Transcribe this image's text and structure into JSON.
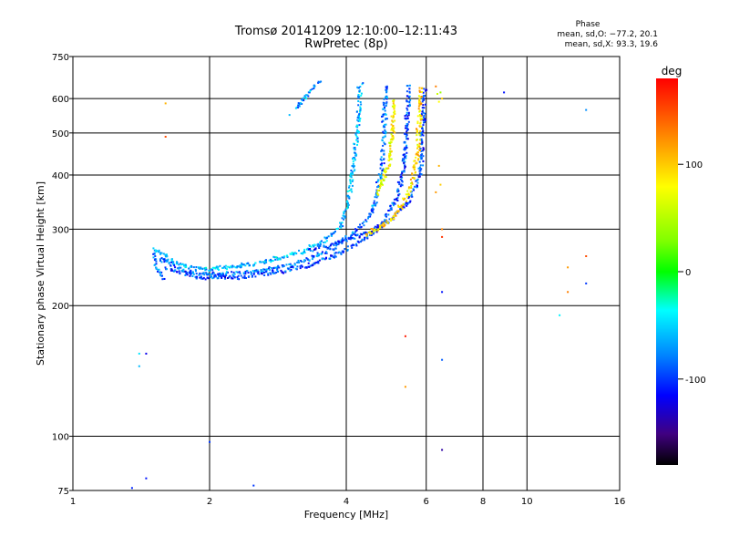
{
  "header": {
    "title_line1": "Tromsø 20141209 12:10:00–12:11:43",
    "title_line2": "RwPretec (8p)",
    "phase_heading": "Phase",
    "phase_o": "mean, sd,O: −77.2, 20.1",
    "phase_x": "mean, sd,X:  93.3, 19.6"
  },
  "chart_data": {
    "type": "scatter",
    "title": "Tromsø 20141209 12:10:00–12:11:43",
    "subtitle": "RwPretec (8p)",
    "xlabel": "Frequency [MHz]",
    "ylabel": "Stationary phase Virtual Height [km]",
    "x_scale": "log",
    "y_scale": "log",
    "xlim": [
      1,
      16
    ],
    "ylim": [
      75,
      750
    ],
    "x_ticks": [
      1,
      2,
      4,
      6,
      8,
      10,
      16
    ],
    "y_ticks": [
      75,
      100,
      200,
      300,
      400,
      500,
      600,
      750
    ],
    "grid": true,
    "colorbar": {
      "label": "deg",
      "range": [
        -180,
        180
      ],
      "ticks": [
        100,
        0,
        -100
      ],
      "colors": [
        "#ff0000",
        "#ff8000",
        "#ffff00",
        "#00ff00",
        "#00ffff",
        "#0080ff",
        "#0000ff",
        "#400080",
        "#000000"
      ]
    },
    "phase_stats": {
      "O": {
        "mean": -77.2,
        "sd": 20.1
      },
      "X": {
        "mean": 93.3,
        "sd": 19.6
      }
    },
    "traces": [
      {
        "mode": "O",
        "phase": -60,
        "spread": 4,
        "points": [
          [
            1.5,
            270
          ],
          [
            1.65,
            255
          ],
          [
            1.8,
            245
          ],
          [
            2.0,
            243
          ],
          [
            2.4,
            248
          ],
          [
            2.8,
            256
          ],
          [
            3.2,
            267
          ],
          [
            3.6,
            283
          ],
          [
            3.9,
            305
          ],
          [
            4.05,
            350
          ],
          [
            4.15,
            420
          ],
          [
            4.25,
            520
          ],
          [
            4.3,
            650
          ]
        ]
      },
      {
        "mode": "O",
        "phase": -85,
        "spread": 4,
        "points": [
          [
            1.55,
            258
          ],
          [
            1.8,
            238
          ],
          [
            2.1,
            236
          ],
          [
            2.6,
            240
          ],
          [
            3.1,
            250
          ],
          [
            3.6,
            265
          ],
          [
            4.0,
            285
          ],
          [
            4.4,
            312
          ],
          [
            4.65,
            350
          ],
          [
            4.8,
            420
          ],
          [
            4.85,
            520
          ],
          [
            4.88,
            650
          ]
        ]
      },
      {
        "mode": "O",
        "phase": -95,
        "spread": 4,
        "points": [
          [
            1.6,
            245
          ],
          [
            1.9,
            232
          ],
          [
            2.3,
            232
          ],
          [
            2.9,
            240
          ],
          [
            3.4,
            250
          ],
          [
            3.9,
            265
          ],
          [
            4.4,
            285
          ],
          [
            4.8,
            310
          ],
          [
            5.15,
            350
          ],
          [
            5.35,
            420
          ],
          [
            5.45,
            520
          ],
          [
            5.5,
            650
          ]
        ]
      },
      {
        "mode": "O",
        "phase": -100,
        "spread": 4,
        "points": [
          [
            3.3,
            268
          ],
          [
            3.7,
            275
          ],
          [
            4.1,
            286
          ],
          [
            4.6,
            298
          ],
          [
            5.0,
            315
          ],
          [
            5.4,
            340
          ],
          [
            5.7,
            375
          ],
          [
            5.85,
            420
          ],
          [
            5.9,
            520
          ],
          [
            5.95,
            640
          ]
        ]
      },
      {
        "mode": "X",
        "phase": 95,
        "spread": 4,
        "points": [
          [
            4.4,
            292
          ],
          [
            4.8,
            305
          ],
          [
            5.1,
            320
          ],
          [
            5.4,
            350
          ],
          [
            5.6,
            390
          ],
          [
            5.75,
            450
          ],
          [
            5.8,
            560
          ],
          [
            5.85,
            640
          ]
        ]
      },
      {
        "mode": "X",
        "phase": 80,
        "spread": 4,
        "points": [
          [
            4.7,
            360
          ],
          [
            4.95,
            420
          ],
          [
            5.05,
            500
          ],
          [
            5.1,
            600
          ]
        ]
      },
      {
        "mode": "O",
        "phase": -80,
        "spread": 4,
        "points": [
          [
            1.5,
            265
          ],
          [
            1.55,
            240
          ],
          [
            1.58,
            228
          ]
        ]
      },
      {
        "mode": "O",
        "phase": -70,
        "spread": 3,
        "points": [
          [
            3.1,
            570
          ],
          [
            3.5,
            660
          ]
        ]
      }
    ],
    "isolated_points": [
      [
        1.6,
        585,
        110
      ],
      [
        1.6,
        490,
        150
      ],
      [
        1.4,
        155,
        -45
      ],
      [
        1.4,
        145,
        -60
      ],
      [
        1.45,
        155,
        -120
      ],
      [
        2.0,
        97,
        -100
      ],
      [
        1.45,
        80,
        -110
      ],
      [
        1.35,
        76,
        -105
      ],
      [
        1.3,
        75,
        -110
      ],
      [
        1.38,
        74,
        -100
      ],
      [
        2.5,
        77,
        -100
      ],
      [
        3.0,
        550,
        -60
      ],
      [
        5.4,
        170,
        170
      ],
      [
        5.4,
        130,
        120
      ],
      [
        6.3,
        640,
        130
      ],
      [
        6.35,
        615,
        60
      ],
      [
        6.4,
        590,
        80
      ],
      [
        6.45,
        620,
        40
      ],
      [
        6.5,
        600,
        100
      ],
      [
        6.4,
        420,
        110
      ],
      [
        6.45,
        380,
        100
      ],
      [
        6.5,
        300,
        130
      ],
      [
        6.5,
        288,
        160
      ],
      [
        6.5,
        215,
        -110
      ],
      [
        6.5,
        150,
        -90
      ],
      [
        6.5,
        93,
        -140
      ],
      [
        6.3,
        365,
        120
      ],
      [
        8.9,
        620,
        -110
      ],
      [
        12.3,
        245,
        120
      ],
      [
        12.3,
        215,
        130
      ],
      [
        13.5,
        260,
        150
      ],
      [
        13.5,
        225,
        -100
      ],
      [
        13.5,
        565,
        -75
      ],
      [
        11.8,
        190,
        -40
      ]
    ]
  }
}
